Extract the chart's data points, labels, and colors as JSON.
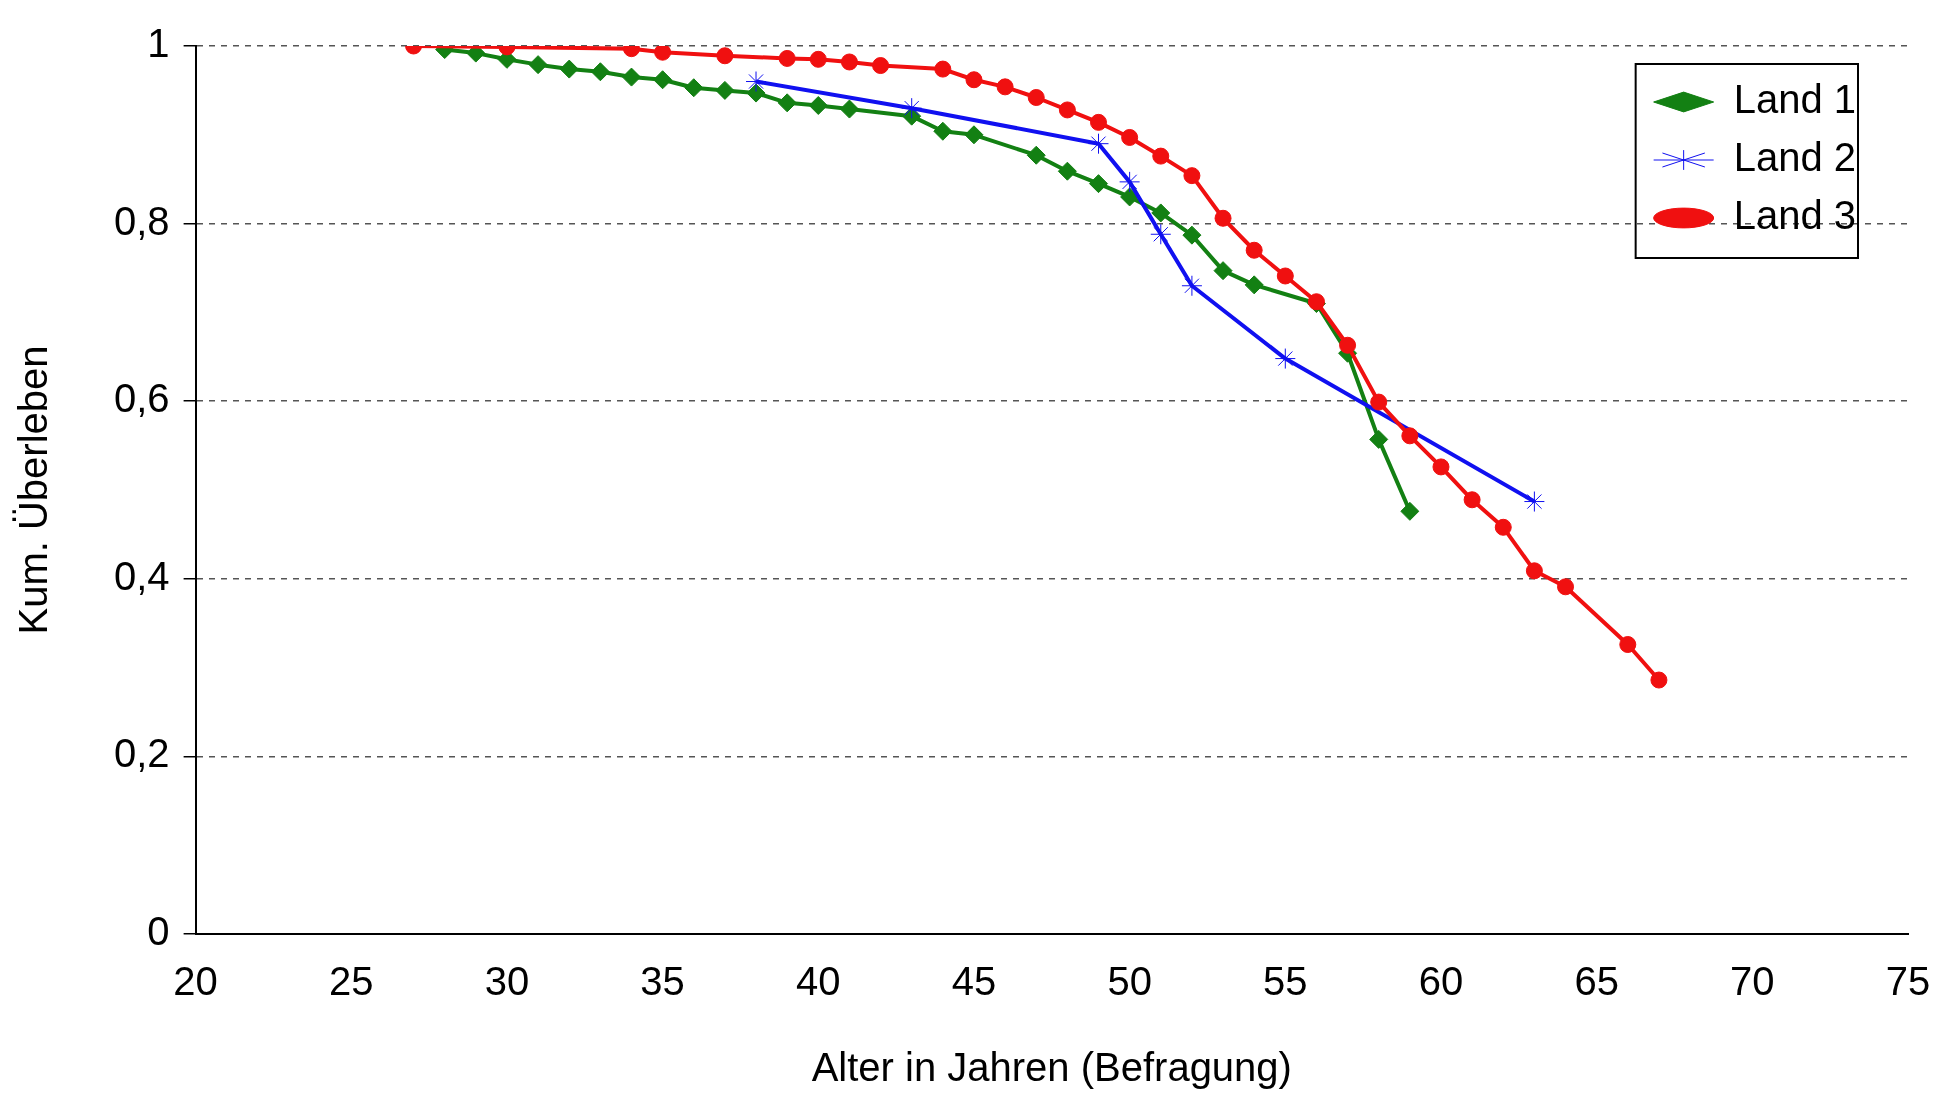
{
  "chart_data": {
    "type": "line",
    "xlabel": "Alter in Jahren (Befragung)",
    "ylabel": "Kum. Überleben",
    "xlim": [
      20,
      75
    ],
    "xticks": [
      20,
      25,
      30,
      35,
      40,
      45,
      50,
      55,
      60,
      65,
      70,
      75
    ],
    "ylim": [
      0,
      1
    ],
    "yticks": [
      {
        "value": 0,
        "label": "0"
      },
      {
        "value": 0.2,
        "label": "0,2"
      },
      {
        "value": 0.4,
        "label": "0,4"
      },
      {
        "value": 0.6,
        "label": "0,6"
      },
      {
        "value": 0.8,
        "label": "0,8"
      },
      {
        "value": 1,
        "label": "1"
      }
    ],
    "grid": "y",
    "legend": "top right",
    "line_style": "solid",
    "series": [
      {
        "name": "Land 1",
        "color": "#138013",
        "marker": "diamond",
        "x": [
          28,
          29,
          30,
          31,
          32,
          33,
          34,
          35,
          36,
          37,
          38,
          39,
          40,
          41,
          43,
          44,
          45,
          47,
          48,
          49,
          50,
          51,
          52,
          53,
          54,
          56,
          57,
          58,
          59
        ],
        "values": [
          0.996,
          0.992,
          0.985,
          0.979,
          0.974,
          0.971,
          0.965,
          0.962,
          0.953,
          0.95,
          0.947,
          0.936,
          0.933,
          0.929,
          0.921,
          0.904,
          0.9,
          0.877,
          0.859,
          0.845,
          0.83,
          0.812,
          0.787,
          0.747,
          0.731,
          0.71,
          0.654,
          0.557,
          0.476
        ]
      },
      {
        "name": "Land 2",
        "color": "#1010f0",
        "marker": "cross",
        "x": [
          38,
          43,
          49,
          50,
          51,
          52,
          55,
          63
        ],
        "values": [
          0.96,
          0.93,
          0.89,
          0.847,
          0.788,
          0.73,
          0.648,
          0.487
        ]
      },
      {
        "name": "Land 3",
        "color": "#f01010",
        "marker": "circle",
        "x": [
          27,
          30,
          34,
          35,
          37,
          39,
          40,
          41,
          42,
          44,
          45,
          46,
          47,
          48,
          49,
          50,
          51,
          52,
          53,
          54,
          55,
          56,
          57,
          58,
          59,
          60,
          61,
          62,
          63,
          64,
          66,
          67
        ],
        "values": [
          1,
          0.999,
          0.997,
          0.993,
          0.989,
          0.986,
          0.985,
          0.982,
          0.978,
          0.974,
          0.962,
          0.954,
          0.942,
          0.928,
          0.914,
          0.897,
          0.876,
          0.854,
          0.806,
          0.77,
          0.741,
          0.712,
          0.663,
          0.599,
          0.561,
          0.526,
          0.489,
          0.458,
          0.409,
          0.391,
          0.326,
          0.286
        ]
      }
    ]
  }
}
